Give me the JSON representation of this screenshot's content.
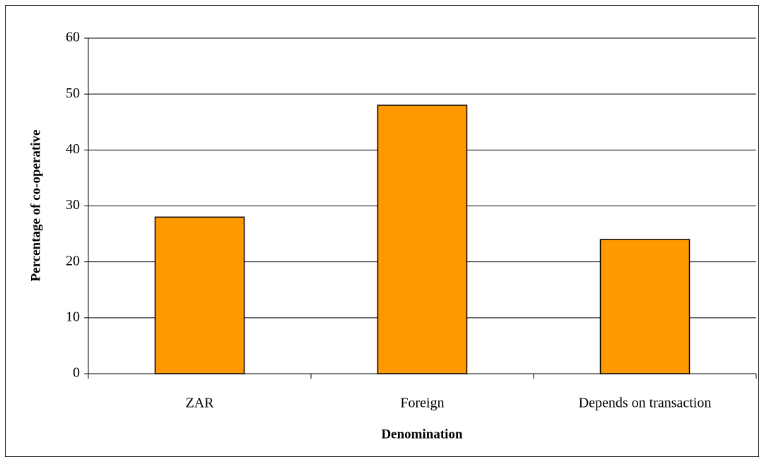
{
  "chart_data": {
    "type": "bar",
    "x_label": "Denomination",
    "y_label": "Percentage of co-operative",
    "categories": [
      "ZAR",
      "Foreign",
      "Depends on transaction"
    ],
    "values": [
      28,
      48,
      24
    ],
    "color": "#ff9900",
    "ylim": [
      0,
      60
    ],
    "yticks": [
      0,
      10,
      20,
      30,
      40,
      50,
      60
    ],
    "grid": true
  }
}
